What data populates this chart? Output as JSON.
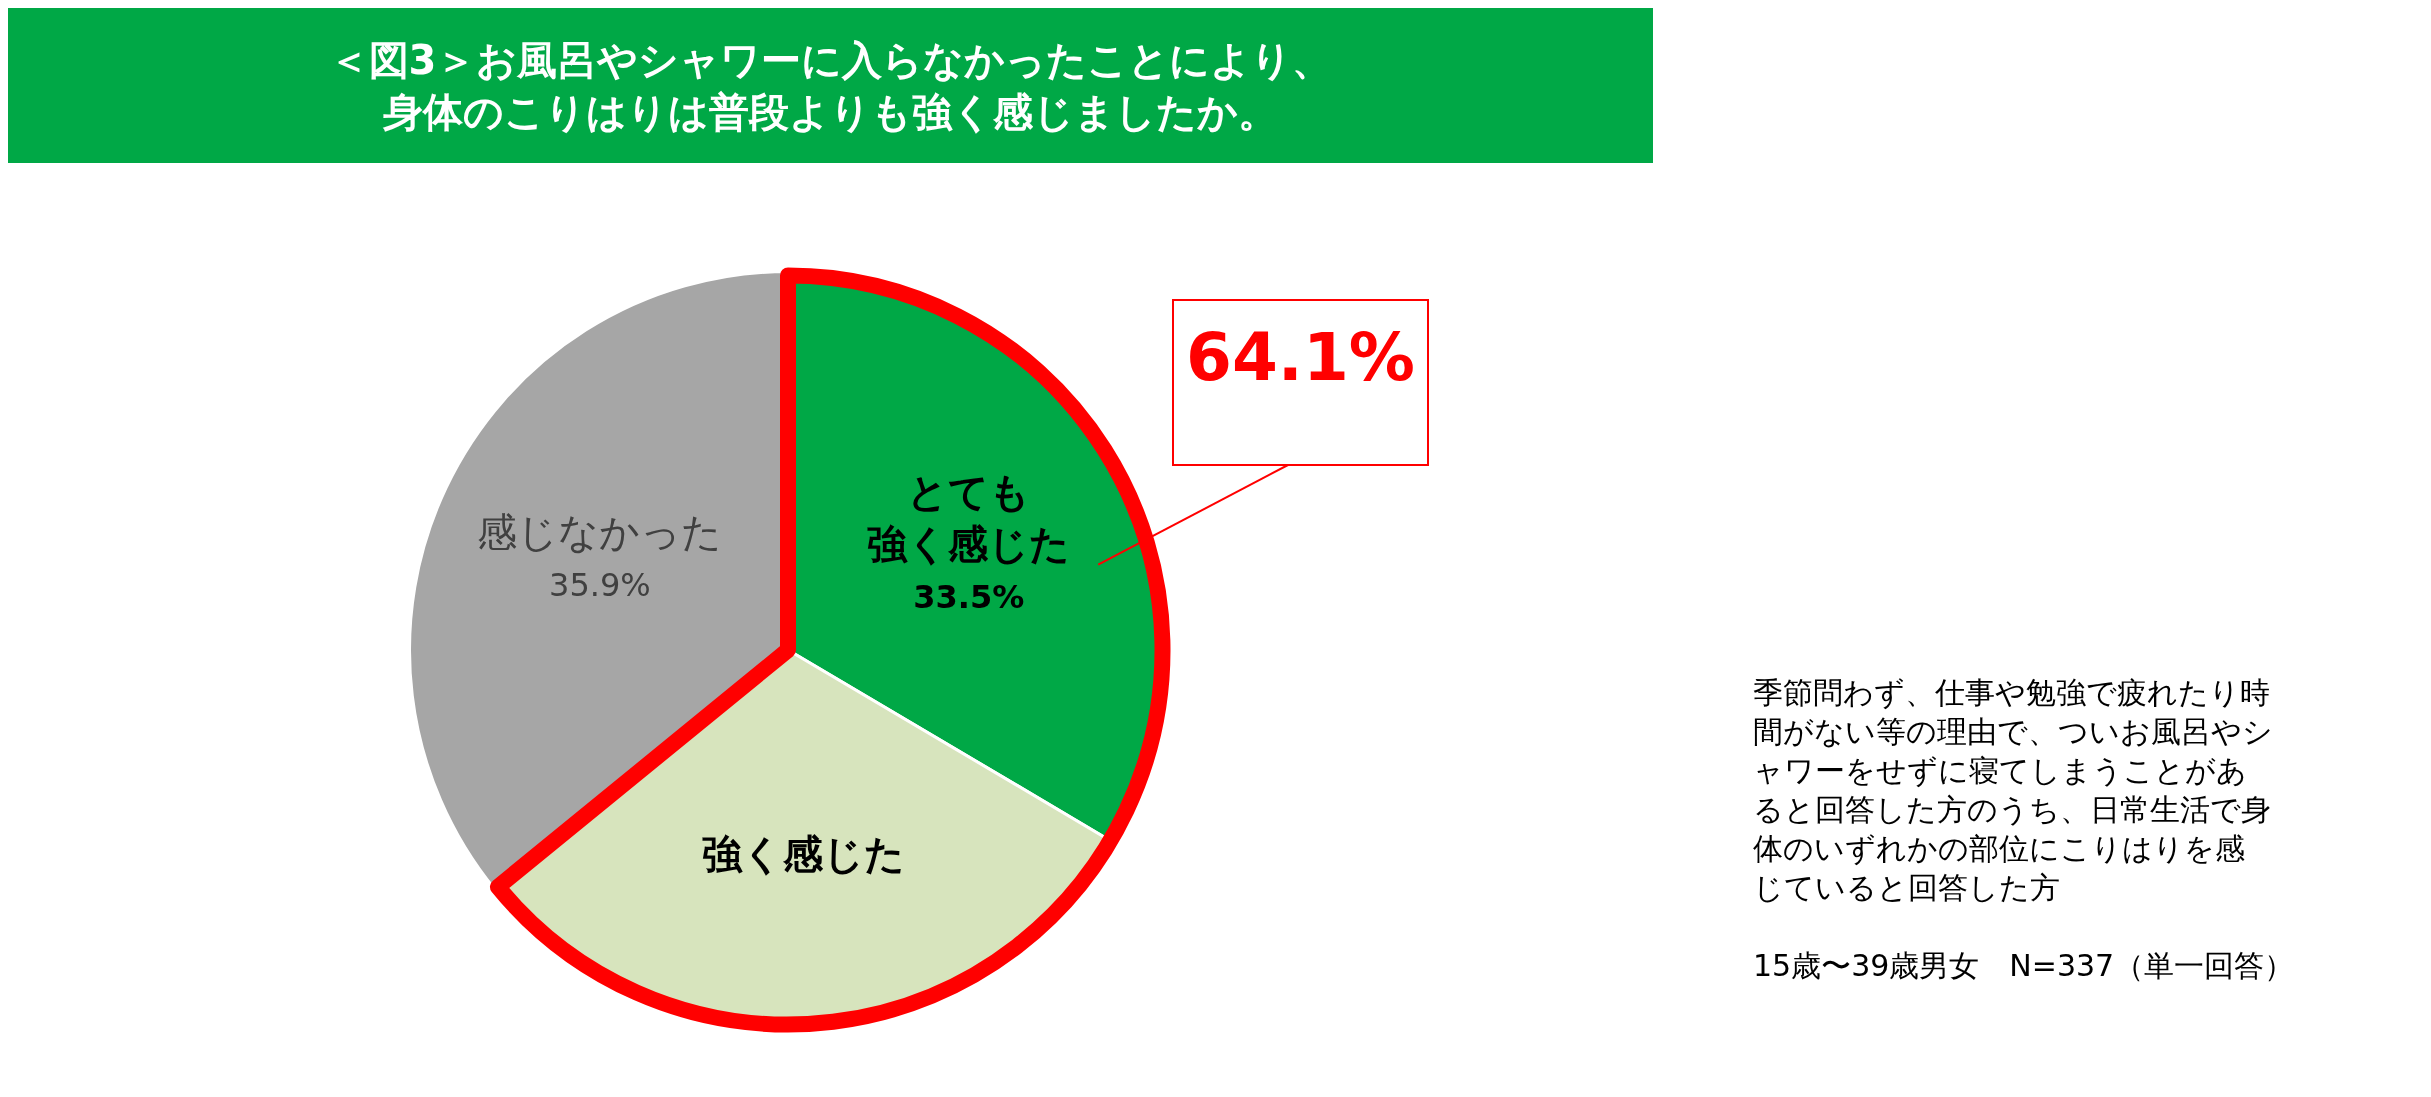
{
  "chart_data": {
    "type": "pie",
    "title": "＜図3＞お風呂やシャワーに入らなかったことにより、身体のこりはりは普段よりも強く感じましたか。",
    "categories": [
      "とても強く感じた",
      "強く感じた",
      "感じなかった"
    ],
    "values": [
      33.5,
      30.6,
      35.9
    ],
    "value_labels": [
      "33.5%",
      null,
      "35.9%"
    ],
    "colors": [
      "#00a846",
      "#d7e4bd",
      "#a6a6a6"
    ],
    "legend": false,
    "annotations": [
      "64.1%",
      "季節問わず、仕事や勉強で疲れたり時間がない等の理由で、ついお風呂やシャワーをせずに寝てしまうことがあると回答した方のうち、日常生活で身体のいずれかの部位にこりはりを感じていると回答した方",
      "15歳〜39歳男女　N=337（単一回答）"
    ]
  }
}
